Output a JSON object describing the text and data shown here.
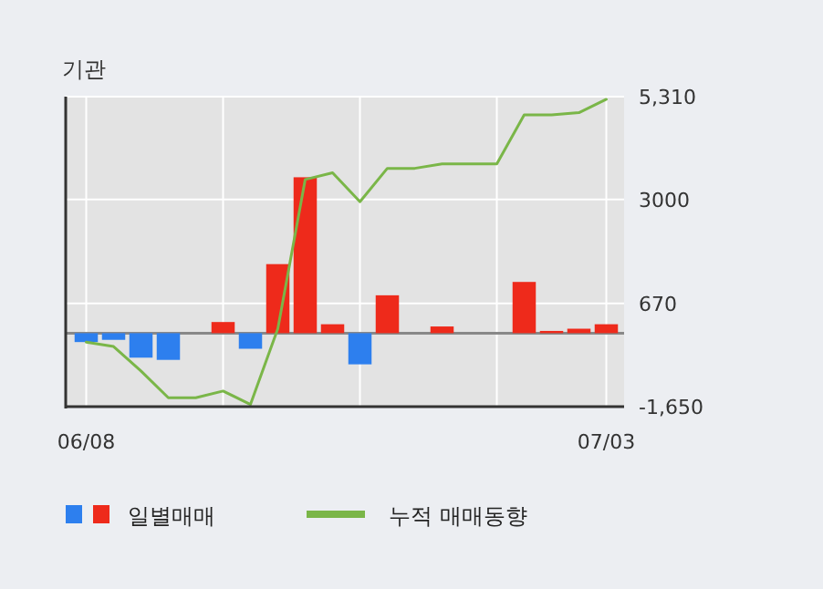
{
  "chart_data": {
    "type": "bar",
    "title": "기관",
    "categories": [
      "06/08",
      null,
      null,
      null,
      null,
      null,
      null,
      null,
      null,
      null,
      null,
      null,
      null,
      null,
      null,
      null,
      null,
      null,
      null,
      "07/03"
    ],
    "ylim": [
      -1650,
      5310
    ],
    "yticks": [
      {
        "value": 5310,
        "label": "5,310"
      },
      3000,
      670,
      {
        "value": -1650,
        "label": "-1,650"
      }
    ],
    "grid": true,
    "legend": "bottom left",
    "series": [
      {
        "name": "일별매매",
        "colors": [
          "#2d7fee",
          "#2d7fee",
          "#2d7fee",
          "#2d7fee",
          "#ee2a1b",
          "#ee2a1b",
          "#2d7fee",
          "#ee2a1b",
          "#ee2a1b",
          "#ee2a1b",
          "#2d7fee",
          "#ee2a1b",
          "#ee2a1b",
          "#ee2a1b",
          "#ee2a1b",
          "#ee2a1b",
          "#ee2a1b",
          "#ee2a1b",
          "#ee2a1b",
          "#ee2a1b"
        ],
        "values": [
          -200,
          -150,
          -550,
          -600,
          0,
          250,
          -350,
          1550,
          3500,
          200,
          -700,
          850,
          0,
          150,
          0,
          0,
          1150,
          50,
          100,
          200
        ]
      },
      {
        "name": "누적 매매동향",
        "type": "line",
        "color": "#7ab648",
        "values": [
          -200,
          -300,
          -850,
          -1450,
          -1450,
          -1300,
          -1600,
          100,
          3450,
          3600,
          2950,
          3700,
          3700,
          3800,
          3800,
          3800,
          4900,
          4900,
          4950,
          5250
        ]
      }
    ]
  }
}
